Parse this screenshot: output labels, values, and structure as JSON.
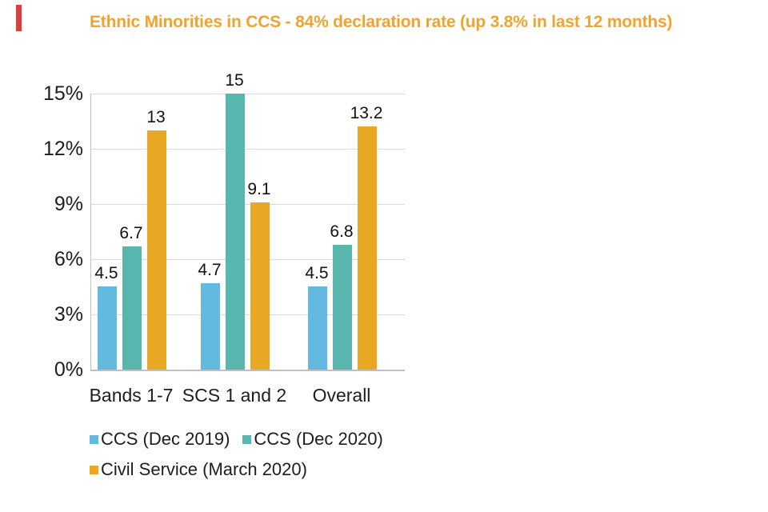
{
  "page": {
    "background": "#ffffff"
  },
  "red_mark": {
    "color": "#d6423b"
  },
  "title": {
    "text": "Ethnic Minorities in CCS - 84% declaration rate (up 3.8% in last 12 months)",
    "color": "#f0a42e"
  },
  "colors": {
    "gridline": "#d9d9d9",
    "axis": "#bfbfbf",
    "text": "#1d1d1d"
  },
  "chart_data": {
    "type": "bar",
    "title": "Ethnic Minorities in CCS - 84% declaration rate (up 3.8% in last 12 months)",
    "categories": [
      "Bands 1-7",
      "SCS 1 and 2",
      "Overall"
    ],
    "series": [
      {
        "name": "CCS (Dec 2019)",
        "color": "#63b9e0",
        "values": [
          4.5,
          4.7,
          4.5
        ],
        "labels": [
          "4.5",
          "4.7",
          "4.5"
        ]
      },
      {
        "name": "CCS (Dec 2020)",
        "color": "#58b6ae",
        "values": [
          6.7,
          15,
          6.8
        ],
        "labels": [
          "6.7",
          "15",
          "6.8"
        ]
      },
      {
        "name": "Civil Service (March 2020)",
        "color": "#e9a823",
        "values": [
          13,
          9.1,
          13.2
        ],
        "labels": [
          "13",
          "9.1",
          "13.2"
        ]
      }
    ],
    "yticks": [
      "15%",
      "12%",
      "9%",
      "6%",
      "3%",
      "0%"
    ],
    "ylim": [
      0,
      15
    ],
    "grid": true,
    "legend_position": "bottom"
  }
}
